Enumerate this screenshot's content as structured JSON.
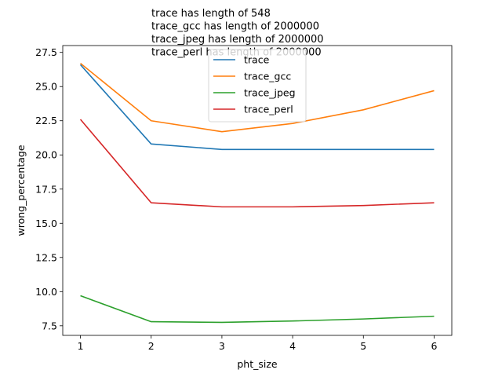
{
  "chart_data": {
    "type": "line",
    "title_lines": [
      "trace has length of 548",
      "trace_gcc has length of 2000000",
      "trace_jpeg has length of 2000000",
      "trace_perl has length of 2000000"
    ],
    "xlabel": "pht_size",
    "ylabel": "wrong_percentage",
    "x": [
      1,
      2,
      3,
      4,
      5,
      6
    ],
    "xticks": [
      "1",
      "2",
      "3",
      "4",
      "5",
      "6"
    ],
    "yticks": [
      "7.5",
      "10.0",
      "12.5",
      "15.0",
      "17.5",
      "20.0",
      "22.5",
      "25.0",
      "27.5"
    ],
    "xlim": [
      0.75,
      6.25
    ],
    "ylim": [
      6.8,
      28.0
    ],
    "legend_position": "top-center",
    "series": [
      {
        "name": "trace",
        "color": "#1f77b4",
        "values": [
          26.6,
          20.8,
          20.4,
          20.4,
          20.4,
          20.4
        ]
      },
      {
        "name": "trace_gcc",
        "color": "#ff7f0e",
        "values": [
          26.7,
          22.5,
          21.7,
          22.3,
          23.3,
          24.7
        ]
      },
      {
        "name": "trace_jpeg",
        "color": "#2ca02c",
        "values": [
          9.7,
          7.8,
          7.75,
          7.85,
          8.0,
          8.2
        ]
      },
      {
        "name": "trace_perl",
        "color": "#d62728",
        "values": [
          22.6,
          16.5,
          16.2,
          16.2,
          16.3,
          16.5
        ]
      }
    ]
  }
}
